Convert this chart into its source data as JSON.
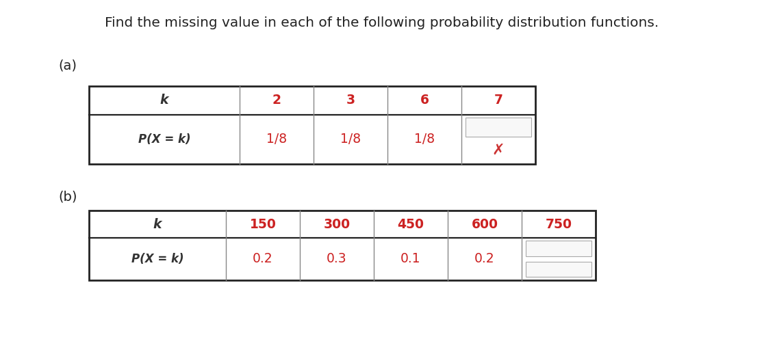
{
  "title": "Find the missing value in each of the following probability distribution functions.",
  "title_fontsize": 14.5,
  "title_color": "#222222",
  "label_a": "(a)",
  "label_b": "(b)",
  "table_a": {
    "header_row": [
      "k",
      "2",
      "3",
      "6",
      "7"
    ],
    "data_row": [
      "P(X = k)",
      "1/8",
      "1/8",
      "1/8",
      ""
    ],
    "header_color": "#cc2222",
    "data_color": "#cc2222",
    "label_color": "#333333",
    "missing_cell_index": 4,
    "x_symbol": "✗",
    "x_color": "#cc3333"
  },
  "table_b": {
    "header_row": [
      "k",
      "150",
      "300",
      "450",
      "600",
      "750"
    ],
    "data_row": [
      "P(X = k)",
      "0.2",
      "0.3",
      "0.1",
      "0.2",
      ""
    ],
    "header_color": "#cc2222",
    "data_color": "#cc2222",
    "label_color": "#333333",
    "missing_cell_index": 5
  },
  "bg_color": "#ffffff",
  "border_color_thick": "#222222",
  "border_color_thin": "#888888"
}
